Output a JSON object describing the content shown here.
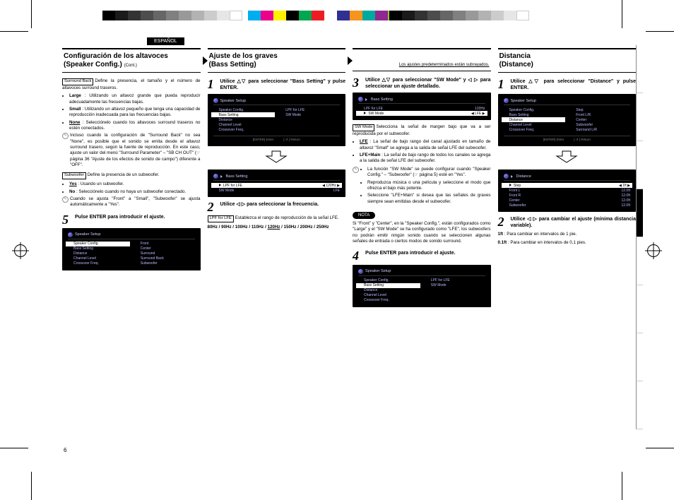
{
  "language_tab": "ESPAÑOL",
  "page_number": "6",
  "color_bars_center": [
    "#00aeef",
    "#ec008c",
    "#fff200",
    "#000000",
    "#00a651",
    "#ed1c24",
    "#ffffff",
    "#2e3192",
    "#f7941d",
    "#00a99d",
    "#92278f",
    "#8dc63f",
    "#ef4136",
    "#000000"
  ],
  "gray_bars": [
    "#000000",
    "#1a1a1a",
    "#333333",
    "#4d4d4d",
    "#666666",
    "#808080",
    "#999999",
    "#b3b3b3",
    "#cccccc",
    "#e6e6e6",
    "#ffffff"
  ],
  "col1": {
    "title_main": "Configuración de los altavoces",
    "title_sub": "(Speaker Config.)",
    "title_cont": "(Cont.)",
    "surround_back": {
      "label": "Surround Back",
      "def": "Define la presencia, el tamaño y el número de altavoces surround traseros.",
      "items": [
        {
          "k": "Large",
          "v": ": Utilizando un altavoz grande que pueda reproducir adecuadamente las frecuencias bajas."
        },
        {
          "k": "Small",
          "v": ": Utilizando un altavoz pequeño que tenga una capacidad de reproducción inadecuada para las frecuencias bajas."
        },
        {
          "k": "None",
          "u": true,
          "v": ": Selecciónelo cuando los altavoces surround traseros no estén conectados."
        }
      ],
      "note": "Incluso cuando la configuración de \"Surround Back\" no sea \"None\", es posible que el sonido se emita desde el altavoz surround trasero, según la fuente de reproducción. En este caso, ajuste un valor del menú \"Surround Parameter\" – \"SB CH OUT\" (☞ página 36 \"Ajuste de los efectos de sonido de campo\") diferente a \"OFF\"."
    },
    "subwoofer": {
      "label": "Subwoofer",
      "def": "Define la presencia de un subwoofer.",
      "items": [
        {
          "k": "Yes",
          "u": true,
          "v": ": Usando un subwoofer."
        },
        {
          "k": "No",
          "v": ": Selecciónelo cuando no haya un subwoofer conectado."
        }
      ],
      "note": "Cuando se ajusta \"Front\" a \"Small\", \"Subwoofer\" se ajusta automáticamente a \"Yes\"."
    },
    "step5": "Pulse ENTER para introducir el ajuste.",
    "screen5": {
      "title": "Speaker Setup",
      "left": [
        "Speaker Config.",
        "Bass Setting",
        "Distance",
        "Channel Level",
        "Crossover Freq."
      ],
      "right": [
        "Front",
        "Center",
        "Surround",
        "Surround Back",
        "Subwoofer"
      ],
      "selected": 0
    }
  },
  "col2": {
    "title_main": "Ajuste de los graves",
    "title_sub": "(Bass Setting)",
    "underline_note": "Los ajustes predeterminados están subrayados.",
    "step1": "Utilice △▽ para seleccionar \"Bass Setting\" y pulse ENTER.",
    "screen1": {
      "title": "Speaker Setup",
      "left": [
        "Speaker Config.",
        "Bass Setting",
        "Distance",
        "Channel Level",
        "Crossover Freq."
      ],
      "right": [
        "LPF for LFE",
        "SW Mode"
      ],
      "selected": 1,
      "foot": [
        "[ENTER]  Enter",
        "[ ↺ ]  Return"
      ]
    },
    "screen1b": {
      "title": "Bass Setting",
      "rows": [
        {
          "l": "LPF for LFE",
          "r": "120Hz",
          "sel": true
        },
        {
          "l": "SW Mode",
          "r": "LFE"
        }
      ]
    },
    "step2": "Utilice ◁ ▷ para seleccionar la frecuencia.",
    "lpf": {
      "label": "LPF for LFE",
      "def": "Establezca el rango de reproducción de la señal LFE.",
      "options": "80Hz / 90Hz / 100Hz / 110Hz / 120Hz / 150Hz / 200Hz / 250Hz",
      "default": "120Hz"
    }
  },
  "col3": {
    "step3": "Utilice △▽ para seleccionar \"SW Mode\" y ◁ ▷ para seleccionar un ajuste detallado.",
    "screen3": {
      "title": "Bass Setting",
      "rows": [
        {
          "l": "LPF for LFE",
          "r": "120Hz"
        },
        {
          "l": "SW Mode",
          "r": "LFE",
          "sel": true
        }
      ]
    },
    "swmode": {
      "label": "SW Mode",
      "def": "Selecciona la señal de margen bajo que va a ser reproducida por el subwoofer.",
      "items": [
        {
          "k": "LFE",
          "u": true,
          "v": ": La señal de bajo rango del canal ajustado en tamaño de altavoz \"Small\" se agrega a la salida de señal LFE del subwoofer."
        },
        {
          "k": "LFE+Main",
          "v": ": La señal de bajo rango de todos los canales se agrega a la salida de señal LFE del subwoofer."
        }
      ],
      "notes": [
        "La función \"SW Mode\" se puede configurar cuando \"Speaker Config.\" – \"Subwoofer\" (☞ página 5) esté en \"Yes\".",
        "Reproduzca música o una película y seleccione el modo que ofrezca el bajo más potente.",
        "Seleccione \"LFE+Main\" si desea que las señales de graves siempre sean emitidas desde el subwoofer."
      ]
    },
    "nota_label": "NOTA",
    "nota_text": "Si \"Front\" y \"Center\", en la \"Speaker Config.\", están configurados como \"Large\" y el \"SW Mode\" se ha configurado como \"LFE\", los subwoofers no podrán emitir ningún sonido cuando se seleccionen algunas señales de entrada o ciertos modos de sonido surround.",
    "step4": "Pulse ENTER para introducir el ajuste.",
    "screen4": {
      "title": "Speaker Setup",
      "left": [
        "Speaker Config.",
        "Bass Setting",
        "Distance",
        "Channel Level",
        "Crossover Freq."
      ],
      "right": [
        "LPF for LFE",
        "SW Mode"
      ],
      "selected": 1
    }
  },
  "col4": {
    "title_main": "Distancia",
    "title_sub": "(Distance)",
    "step1": "Utilice △▽ para seleccionar \"Distance\" y pulse ENTER.",
    "screen1": {
      "title": "Speaker Setup",
      "left": [
        "Speaker Config.",
        "Bass Setting",
        "Distance",
        "Channel Level",
        "Crossover Freq."
      ],
      "right": [
        "Step",
        "Front L/R",
        "Center",
        "Subwoofer",
        "Surround L/R"
      ],
      "selected": 2,
      "foot": [
        "[ENTER]  Enter",
        "[ ↺ ]  Return"
      ]
    },
    "screen1b": {
      "title": "Distance",
      "rows": [
        {
          "l": "Step",
          "r": "1ft",
          "sel": true
        },
        {
          "l": "Front L",
          "r": "12.0ft"
        },
        {
          "l": "Front R",
          "r": "12.0ft"
        },
        {
          "l": "Center",
          "r": "12.0ft"
        },
        {
          "l": "Subwoofer",
          "r": "12.0ft"
        }
      ]
    },
    "step2": "Utilice ◁ ▷ para cambiar el ajuste (mínima distancia variable).",
    "opts": [
      {
        "k": "1ft",
        "v": ": Para cambiar en intervalos de 1 pie."
      },
      {
        "k": "0.1ft",
        "v": ": Para cambiar en intervalos de 0,1 pies."
      }
    ]
  }
}
